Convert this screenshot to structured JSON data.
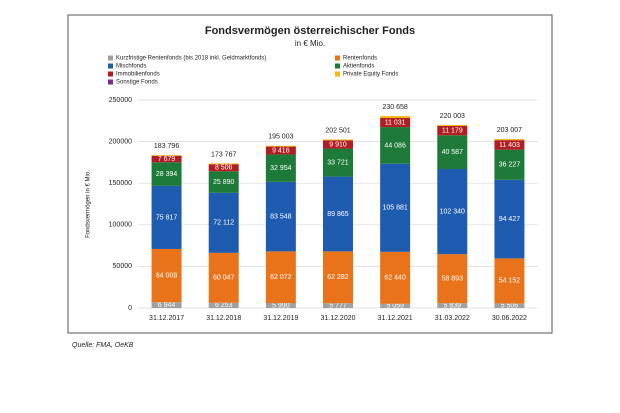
{
  "chart_data": {
    "type": "stacked_bar",
    "title": "Fondsvermögen österreichischer Fonds",
    "subtitle": "in € Mio.",
    "y_label": "Fondsvermögen in € Mio.",
    "source": "Quelle: FMA, OeKB",
    "categories": [
      "31.12.2017",
      "31.12.2018",
      "31.12.2019",
      "31.12.2020",
      "31.12.2021",
      "31.03.2022",
      "30.06.2022"
    ],
    "series": [
      {
        "name": "Kurzfristige Rentenfonds (bis 2018 inkl. Geldmarktfonds)",
        "color": "#a0a0a0",
        "values": [
          6944,
          6253,
          5990,
          5777,
          5059,
          5839,
          5506
        ],
        "value_labels": [
          "6 944",
          "6 253",
          "5 990",
          "5 777",
          "5 059",
          "5 839",
          "5 506"
        ]
      },
      {
        "name": "Rentenfonds",
        "color": "#e8731a",
        "values": [
          64008,
          60047,
          62072,
          62282,
          62440,
          58893,
          54152
        ],
        "value_labels": [
          "64 008",
          "60 047",
          "62 072",
          "62 282",
          "62 440",
          "58 893",
          "54 152"
        ]
      },
      {
        "name": "Mischfonds",
        "color": "#1f5cb0",
        "values": [
          75817,
          72112,
          83548,
          89865,
          105881,
          102340,
          94427
        ],
        "value_labels": [
          "75 817",
          "72 112",
          "83 548",
          "89 865",
          "105 881",
          "102 340",
          "94 427"
        ]
      },
      {
        "name": "Aktienfonds",
        "color": "#1e7a38",
        "values": [
          28394,
          25890,
          32954,
          33721,
          44086,
          40587,
          36227
        ],
        "value_labels": [
          "28 394",
          "25 890",
          "32 954",
          "33 721",
          "44 086",
          "40 587",
          "36 227"
        ]
      },
      {
        "name": "Immobilienfonds",
        "color": "#b01e24",
        "values": [
          7679,
          8506,
          9416,
          9910,
          11031,
          11179,
          11403
        ],
        "value_labels": [
          "7 679",
          "8 506",
          "9 416",
          "9 910",
          "11 031",
          "11 179",
          "11 403"
        ]
      },
      {
        "name": "Private Equity Fonds",
        "color": "#f5b800",
        "values": [
          900,
          900,
          1000,
          900,
          2100,
          1100,
          1200
        ]
      },
      {
        "name": "Sonstige Fonds",
        "color": "#7a2a8c",
        "values": [
          54,
          59,
          23,
          46,
          61,
          65,
          92
        ]
      }
    ],
    "totals": [
      183796,
      173767,
      195003,
      202501,
      230658,
      220003,
      203007
    ],
    "total_labels": [
      "183 796",
      "173 767",
      "195 003",
      "202 501",
      "230 658",
      "220 003",
      "203 007"
    ],
    "ylim": [
      0,
      250000
    ],
    "yticks": [
      0,
      50000,
      100000,
      150000,
      200000,
      250000
    ],
    "grid": true
  }
}
